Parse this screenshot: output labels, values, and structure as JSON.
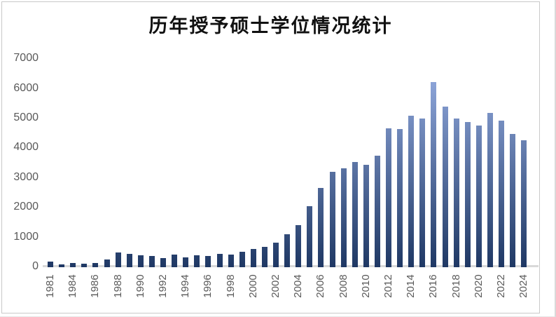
{
  "chart_data": {
    "type": "bar",
    "title": "历年授予硕士学位情况统计",
    "categories": [
      "1981",
      "1982",
      "1984",
      "1985",
      "1986",
      "1987",
      "1988",
      "1989",
      "1990",
      "1991",
      "1992",
      "1993",
      "1994",
      "1995",
      "1996",
      "1997",
      "1998",
      "1999",
      "2000",
      "2001",
      "2002",
      "2003",
      "2004",
      "2005",
      "2006",
      "2007",
      "2008",
      "2009",
      "2010",
      "2011",
      "2012",
      "2013",
      "2014",
      "2015",
      "2016",
      "2017",
      "2018",
      "2019",
      "2020",
      "2021",
      "2022",
      "2023",
      "2024"
    ],
    "values": [
      200,
      105,
      135,
      120,
      150,
      265,
      500,
      440,
      395,
      385,
      295,
      415,
      340,
      400,
      375,
      450,
      420,
      515,
      620,
      690,
      825,
      1110,
      1425,
      2060,
      2670,
      3210,
      3330,
      3540,
      3445,
      3760,
      4670,
      4635,
      5105,
      4995,
      6230,
      5395,
      5005,
      4880,
      4755,
      5180,
      4920,
      4490,
      4260
    ],
    "x_tick_labels": [
      "1981",
      "1984",
      "1986",
      "1988",
      "1990",
      "1992",
      "1994",
      "1996",
      "1998",
      "2000",
      "2002",
      "2004",
      "2006",
      "2008",
      "2010",
      "2012",
      "2014",
      "2016",
      "2018",
      "2020",
      "2022",
      "2024"
    ],
    "x_tick_every": 2,
    "y_ticks": [
      0,
      1000,
      2000,
      3000,
      4000,
      5000,
      6000,
      7000
    ],
    "ylim": [
      0,
      7000
    ],
    "xlabel": "",
    "ylabel": "",
    "grid": "off",
    "legend": "none",
    "x_label_rotation_deg": 90
  },
  "colors": {
    "bar_gradient_top": "#99B1E6",
    "bar_gradient_bottom": "#1F3864",
    "axis_line": "#D9D9D9",
    "tick_label": "#595959",
    "title_text": "#111111",
    "chart_border": "#C9C9C9"
  }
}
